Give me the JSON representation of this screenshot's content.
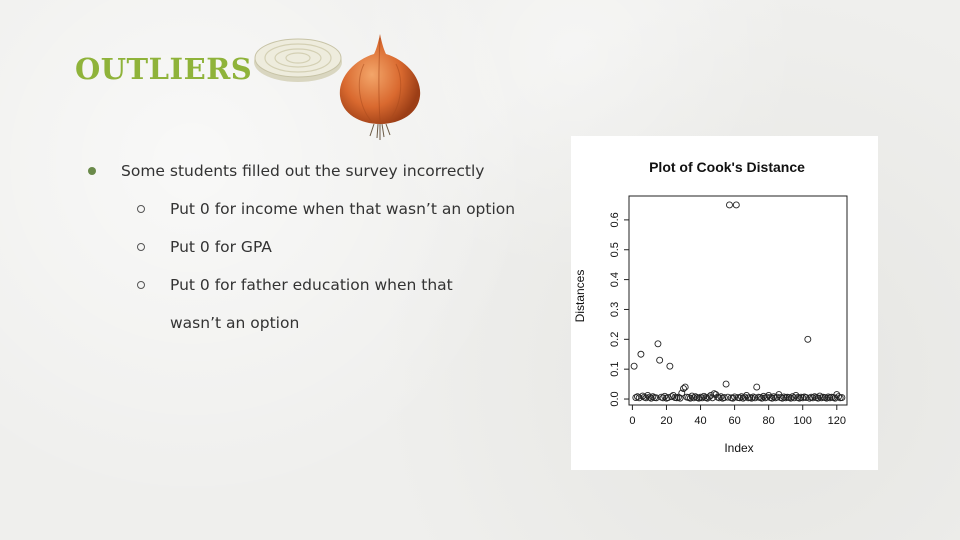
{
  "slide": {
    "title": "OUTLIERS",
    "bullets": [
      {
        "text": "Some students filled out the survey incorrectly",
        "level": 1
      },
      {
        "text": "Put 0 for income when that wasn’t an option",
        "level": 2
      },
      {
        "text": "Put 0 for GPA",
        "level": 2
      },
      {
        "text": "Put 0 for father education when that wasn’t an option",
        "level": 2
      }
    ]
  },
  "chart_data": {
    "type": "scatter",
    "title": "Plot of Cook's Distance",
    "xlabel": "Index",
    "ylabel": "Distances",
    "xlim": [
      -2,
      126
    ],
    "ylim": [
      -0.02,
      0.68
    ],
    "xticks": [
      "0",
      "20",
      "40",
      "60",
      "80",
      "100",
      "120"
    ],
    "yticks": [
      "0.0",
      "0.1",
      "0.2",
      "0.3",
      "0.4",
      "0.5",
      "0.6"
    ],
    "grid": false,
    "points": [
      [
        1,
        0.11
      ],
      [
        2,
        0.005
      ],
      [
        3,
        0.008
      ],
      [
        4,
        0.004
      ],
      [
        5,
        0.15
      ],
      [
        6,
        0.01
      ],
      [
        7,
        0.006
      ],
      [
        8,
        0.004
      ],
      [
        9,
        0.012
      ],
      [
        10,
        0.006
      ],
      [
        11,
        0.003
      ],
      [
        12,
        0.008
      ],
      [
        13,
        0.005
      ],
      [
        14,
        0.004
      ],
      [
        15,
        0.185
      ],
      [
        16,
        0.13
      ],
      [
        17,
        0.006
      ],
      [
        18,
        0.004
      ],
      [
        19,
        0.009
      ],
      [
        20,
        0.003
      ],
      [
        21,
        0.005
      ],
      [
        22,
        0.11
      ],
      [
        23,
        0.008
      ],
      [
        24,
        0.012
      ],
      [
        25,
        0.005
      ],
      [
        26,
        0.004
      ],
      [
        27,
        0.006
      ],
      [
        28,
        0.003
      ],
      [
        29,
        0.02
      ],
      [
        30,
        0.035
      ],
      [
        31,
        0.04
      ],
      [
        32,
        0.006
      ],
      [
        33,
        0.005
      ],
      [
        34,
        0.003
      ],
      [
        35,
        0.01
      ],
      [
        36,
        0.004
      ],
      [
        37,
        0.008
      ],
      [
        38,
        0.005
      ],
      [
        39,
        0.003
      ],
      [
        40,
        0.006
      ],
      [
        41,
        0.004
      ],
      [
        42,
        0.009
      ],
      [
        43,
        0.005
      ],
      [
        44,
        0.003
      ],
      [
        45,
        0.007
      ],
      [
        46,
        0.012
      ],
      [
        47,
        0.004
      ],
      [
        48,
        0.018
      ],
      [
        49,
        0.015
      ],
      [
        50,
        0.006
      ],
      [
        51,
        0.004
      ],
      [
        52,
        0.008
      ],
      [
        53,
        0.003
      ],
      [
        54,
        0.005
      ],
      [
        55,
        0.05
      ],
      [
        56,
        0.006
      ],
      [
        57,
        0.65
      ],
      [
        58,
        0.004
      ],
      [
        59,
        0.003
      ],
      [
        60,
        0.007
      ],
      [
        61,
        0.65
      ],
      [
        62,
        0.005
      ],
      [
        63,
        0.004
      ],
      [
        64,
        0.008
      ],
      [
        65,
        0.003
      ],
      [
        66,
        0.006
      ],
      [
        67,
        0.012
      ],
      [
        68,
        0.004
      ],
      [
        69,
        0.005
      ],
      [
        70,
        0.003
      ],
      [
        71,
        0.007
      ],
      [
        72,
        0.004
      ],
      [
        73,
        0.04
      ],
      [
        74,
        0.006
      ],
      [
        75,
        0.005
      ],
      [
        76,
        0.003
      ],
      [
        77,
        0.009
      ],
      [
        78,
        0.004
      ],
      [
        79,
        0.006
      ],
      [
        80,
        0.012
      ],
      [
        81,
        0.005
      ],
      [
        82,
        0.003
      ],
      [
        83,
        0.008
      ],
      [
        84,
        0.004
      ],
      [
        85,
        0.006
      ],
      [
        86,
        0.015
      ],
      [
        87,
        0.005
      ],
      [
        88,
        0.003
      ],
      [
        89,
        0.007
      ],
      [
        90,
        0.004
      ],
      [
        91,
        0.006
      ],
      [
        92,
        0.005
      ],
      [
        93,
        0.003
      ],
      [
        94,
        0.008
      ],
      [
        95,
        0.004
      ],
      [
        96,
        0.012
      ],
      [
        97,
        0.005
      ],
      [
        98,
        0.003
      ],
      [
        99,
        0.006
      ],
      [
        100,
        0.004
      ],
      [
        101,
        0.007
      ],
      [
        102,
        0.005
      ],
      [
        103,
        0.2
      ],
      [
        104,
        0.003
      ],
      [
        105,
        0.006
      ],
      [
        106,
        0.004
      ],
      [
        107,
        0.008
      ],
      [
        108,
        0.005
      ],
      [
        109,
        0.003
      ],
      [
        110,
        0.01
      ],
      [
        111,
        0.004
      ],
      [
        112,
        0.006
      ],
      [
        113,
        0.005
      ],
      [
        114,
        0.003
      ],
      [
        115,
        0.007
      ],
      [
        116,
        0.004
      ],
      [
        117,
        0.006
      ],
      [
        118,
        0.005
      ],
      [
        119,
        0.003
      ],
      [
        120,
        0.015
      ],
      [
        121,
        0.008
      ],
      [
        122,
        0.004
      ],
      [
        123,
        0.005
      ]
    ]
  }
}
